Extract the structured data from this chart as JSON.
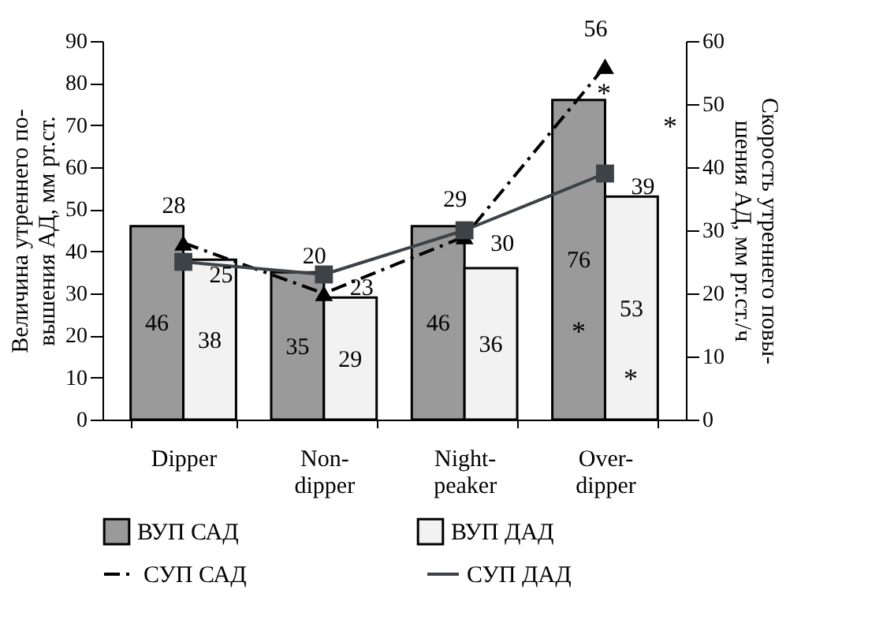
{
  "chart_data": {
    "type": "bar",
    "categories": [
      "Dipper",
      "Non-dipper",
      "Night-peaker",
      "Over-dipper"
    ],
    "ylabel": "Величина утреннего по-\nвышения АД, мм рт.ст.",
    "y2label": "Скорость утреннего повы-\nшения АД, мм рт.ст./ч",
    "ylim": [
      0,
      90
    ],
    "yticks": [
      0,
      10,
      20,
      30,
      40,
      50,
      60,
      70,
      80,
      90
    ],
    "y2lim": [
      0,
      60
    ],
    "y2ticks": [
      0,
      10,
      20,
      30,
      40,
      50,
      60
    ],
    "series": [
      {
        "name": "ВУП САД",
        "type": "bar",
        "color": "#9a9a9a",
        "values": [
          46,
          35,
          46,
          76
        ]
      },
      {
        "name": "ВУП ДАД",
        "type": "bar",
        "color": "#f2f2f2",
        "values": [
          38,
          29,
          36,
          53
        ]
      },
      {
        "name": "СУП САД",
        "type": "line",
        "axis": "y2",
        "color": "#000000",
        "marker": "triangle",
        "line_style": "dashed",
        "values": [
          28,
          20,
          29,
          56
        ]
      },
      {
        "name": "СУП ДАД",
        "type": "line",
        "axis": "y2",
        "color": "#3d4247",
        "marker": "square",
        "line_style": "solid",
        "values": [
          25,
          23,
          30,
          39
        ]
      }
    ],
    "annotations": [
      "*",
      "*",
      "*",
      "*"
    ],
    "data_labels": true,
    "legend": "bottom",
    "grid": false
  }
}
